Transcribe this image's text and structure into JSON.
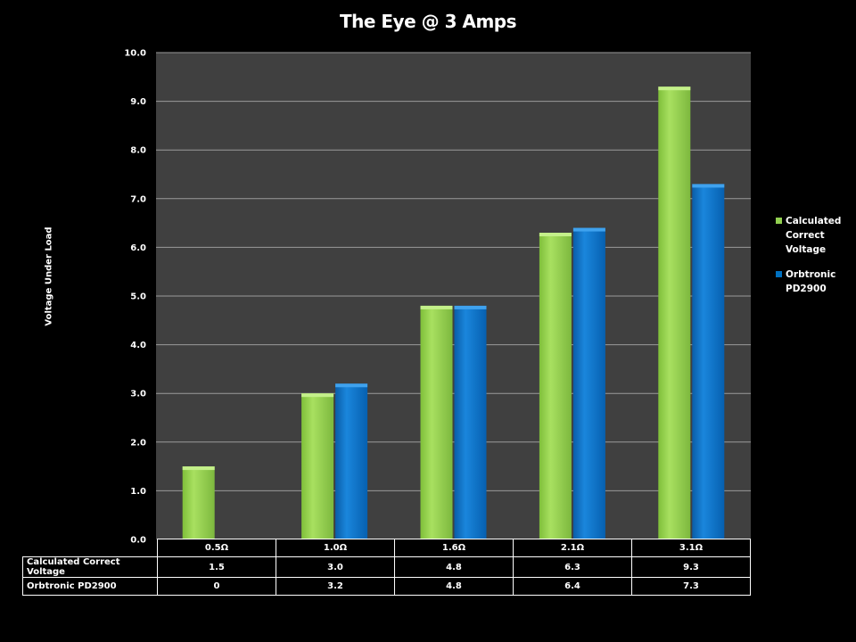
{
  "chart_data": {
    "type": "bar",
    "title": "The Eye @ 3 Amps",
    "xlabel": "",
    "ylabel": "Voltage Under Load",
    "categories": [
      "0.5Ω",
      "1.0Ω",
      "1.6Ω",
      "2.1Ω",
      "3.1Ω"
    ],
    "series": [
      {
        "name": "Calculated Correct Voltage",
        "values": [
          1.5,
          3.0,
          4.8,
          6.3,
          9.3
        ],
        "display": [
          "1.5",
          "3.0",
          "4.8",
          "6.3",
          "9.3"
        ],
        "color": "#92D050"
      },
      {
        "name": "Orbtronic PD2900",
        "values": [
          0,
          3.2,
          4.8,
          6.4,
          7.3
        ],
        "display": [
          "0",
          "3.2",
          "4.8",
          "6.4",
          "7.3"
        ],
        "color": "#0070C0"
      }
    ],
    "ylim": [
      0,
      10
    ],
    "yticks": [
      "0.0",
      "1.0",
      "2.0",
      "3.0",
      "4.0",
      "5.0",
      "6.0",
      "7.0",
      "8.0",
      "9.0",
      "10.0"
    ],
    "grid": true,
    "legend": "right",
    "plot_background": "#404040"
  },
  "legend": {
    "items": [
      {
        "lines": [
          "Calculated",
          "Correct",
          "Voltage"
        ],
        "color": "#92D050"
      },
      {
        "lines": [
          "Orbtronic",
          "PD2900"
        ],
        "color": "#0070C0"
      }
    ]
  },
  "table": {
    "row_labels": [
      "Calculated Correct Voltage",
      "Orbtronic PD2900"
    ]
  }
}
